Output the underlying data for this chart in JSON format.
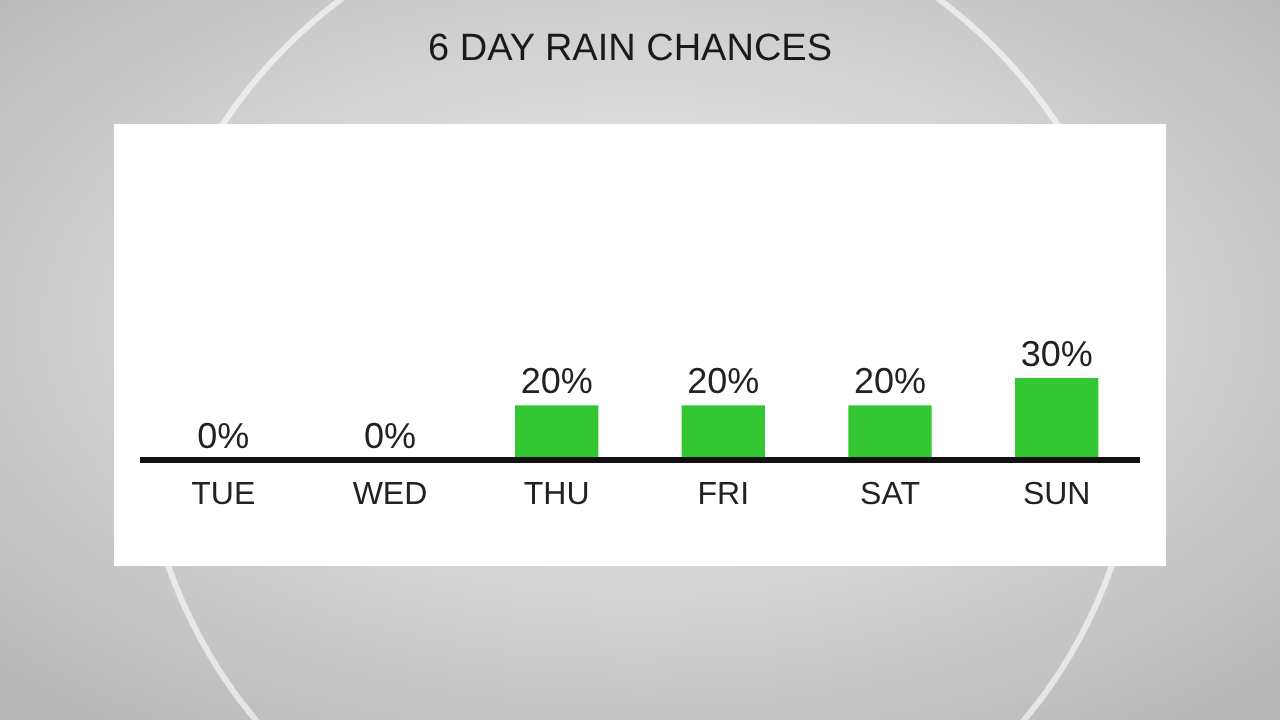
{
  "chart_data": {
    "type": "bar",
    "title": "6 DAY RAIN CHANCES",
    "categories": [
      "TUE",
      "WED",
      "THU",
      "FRI",
      "SAT",
      "SUN"
    ],
    "values": [
      0,
      0,
      20,
      20,
      20,
      30
    ],
    "value_labels": [
      "0%",
      "0%",
      "20%",
      "20%",
      "20%",
      "30%"
    ],
    "color": "#33c833"
  }
}
